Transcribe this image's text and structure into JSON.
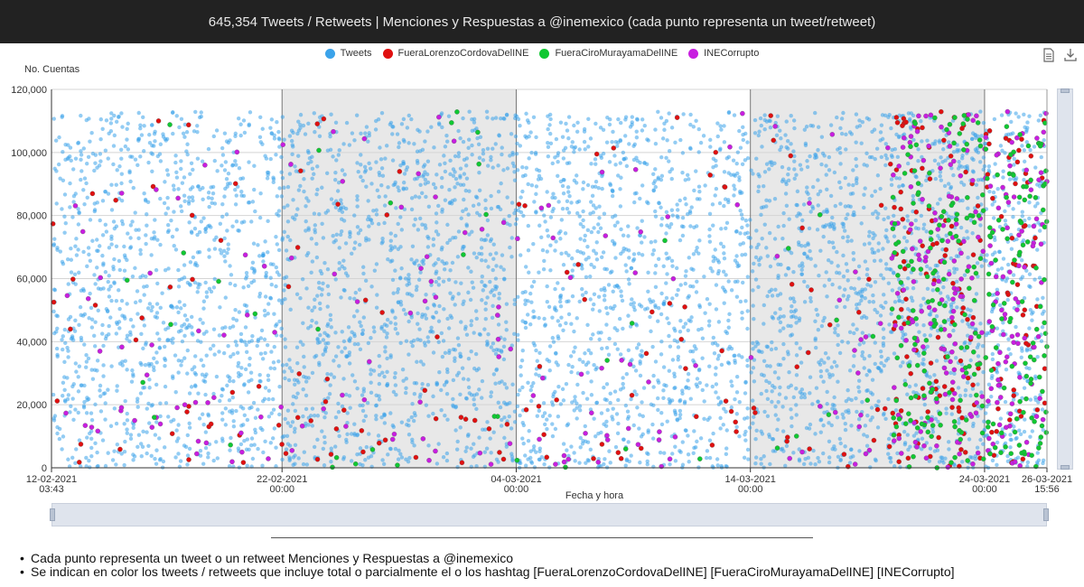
{
  "header": {
    "title": "645,354 Tweets / Retweets | Menciones y Respuestas a @inemexico (cada punto representa un tweet/retweet)"
  },
  "toolbox": {
    "icons": [
      "data-view-icon",
      "download-icon"
    ]
  },
  "notes": [
    "Cada punto representa un tweet o un retweet Menciones y Respuestas a @inemexico",
    "Se indican en color los tweets / retweets que incluye total o parcialmente el o los hashtag [FueraLorenzoCordovaDelINE] [FueraCiroMurayamaDelINE] [INECorrupto]"
  ],
  "chart_data": {
    "type": "scatter",
    "title": "645,354 Tweets / Retweets | Menciones y Respuestas a @inemexico (cada punto representa un tweet/retweet)",
    "xlabel": "Fecha y hora",
    "ylabel": "No. Cuentas",
    "xlim": [
      "2021-02-12 03:43",
      "2021-03-26 15:56"
    ],
    "ylim": [
      0,
      120000
    ],
    "yticks": [
      "0",
      "20,000",
      "40,000",
      "60,000",
      "80,000",
      "100,000",
      "120,000"
    ],
    "xticks": [
      {
        "date": "2021-02-12 03:43",
        "line1": "12-02-2021",
        "line2": "03:43"
      },
      {
        "date": "2021-02-22 00:00",
        "line1": "22-02-2021",
        "line2": "00:00"
      },
      {
        "date": "2021-03-04 00:00",
        "line1": "04-03-2021",
        "line2": "00:00"
      },
      {
        "date": "2021-03-14 00:00",
        "line1": "14-03-2021",
        "line2": "00:00"
      },
      {
        "date": "2021-03-24 00:00",
        "line1": "24-03-2021",
        "line2": "00:00"
      },
      {
        "date": "2021-03-26 15:56",
        "line1": "26-03-2021",
        "line2": "15:56"
      }
    ],
    "grid": true,
    "legend_position": "top-center",
    "series": [
      {
        "name": "Tweets",
        "color": "#3ba3ea",
        "y_range": [
          0,
          113000
        ],
        "count_total": 645354
      },
      {
        "name": "FueraLorenzoCordovaDelINE",
        "color": "#e01010",
        "date_ranges": [
          [
            "2021-02-12 03:43",
            "2021-03-26 15:56"
          ]
        ],
        "dense_range": [
          "2021-03-20 00:00",
          "2021-03-26 15:56"
        ]
      },
      {
        "name": "FueraCiroMurayamaDelINE",
        "color": "#10c832",
        "date_ranges": [
          [
            "2021-02-12 03:43",
            "2021-03-26 15:56"
          ]
        ],
        "dense_range": [
          "2021-03-20 00:00",
          "2021-03-26 15:56"
        ]
      },
      {
        "name": "INECorrupto",
        "color": "#c81ee0",
        "date_ranges": [
          [
            "2021-02-12 03:43",
            "2021-03-26 15:56"
          ]
        ],
        "dense_range": [
          "2021-03-20 00:00",
          "2021-03-26 15:56"
        ]
      }
    ]
  }
}
